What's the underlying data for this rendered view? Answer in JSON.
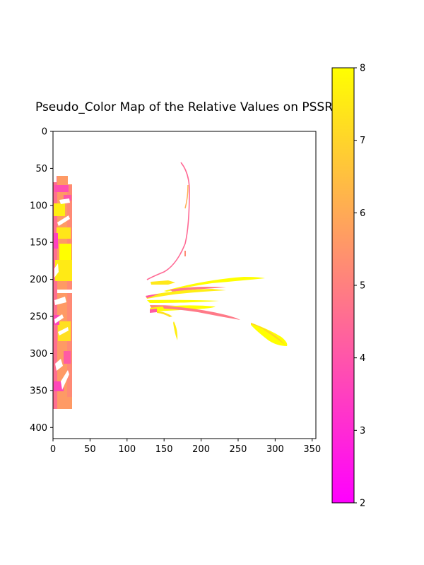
{
  "chart_data": {
    "type": "heatmap",
    "title": "Pseudo_Color Map of the Relative Values on PSSRa",
    "xlabel": "",
    "ylabel": "",
    "xlim": [
      0,
      355
    ],
    "ylim": [
      415,
      0
    ],
    "x_ticks": [
      0,
      50,
      100,
      150,
      200,
      250,
      300,
      350
    ],
    "y_ticks": [
      0,
      50,
      100,
      150,
      200,
      250,
      300,
      350,
      400
    ],
    "colormap": "spring",
    "colormap_stops": [
      "#ff00ff",
      "#ffff00"
    ],
    "colorbar": {
      "range": [
        2,
        8
      ],
      "ticks": [
        2,
        3,
        4,
        5,
        6,
        7,
        8
      ],
      "placement": "right"
    },
    "regions": [
      {
        "id": "left-strip",
        "x": [
          0,
          25
        ],
        "y": [
          60,
          375
        ],
        "dominant_value": 6.5
      },
      {
        "id": "arc",
        "x": [
          172,
          183
        ],
        "y": [
          40,
          200
        ],
        "dominant_value": 4.5
      },
      {
        "id": "leaf-cluster",
        "x": [
          125,
          290
        ],
        "y": [
          195,
          255
        ],
        "dominant_value": 7.5
      },
      {
        "id": "leaf-lower-right",
        "x": [
          265,
          318
        ],
        "y": [
          258,
          292
        ],
        "dominant_value": 7.6
      },
      {
        "id": "leaf-small",
        "x": [
          163,
          170
        ],
        "y": [
          255,
          283
        ],
        "dominant_value": 7.5
      }
    ]
  }
}
